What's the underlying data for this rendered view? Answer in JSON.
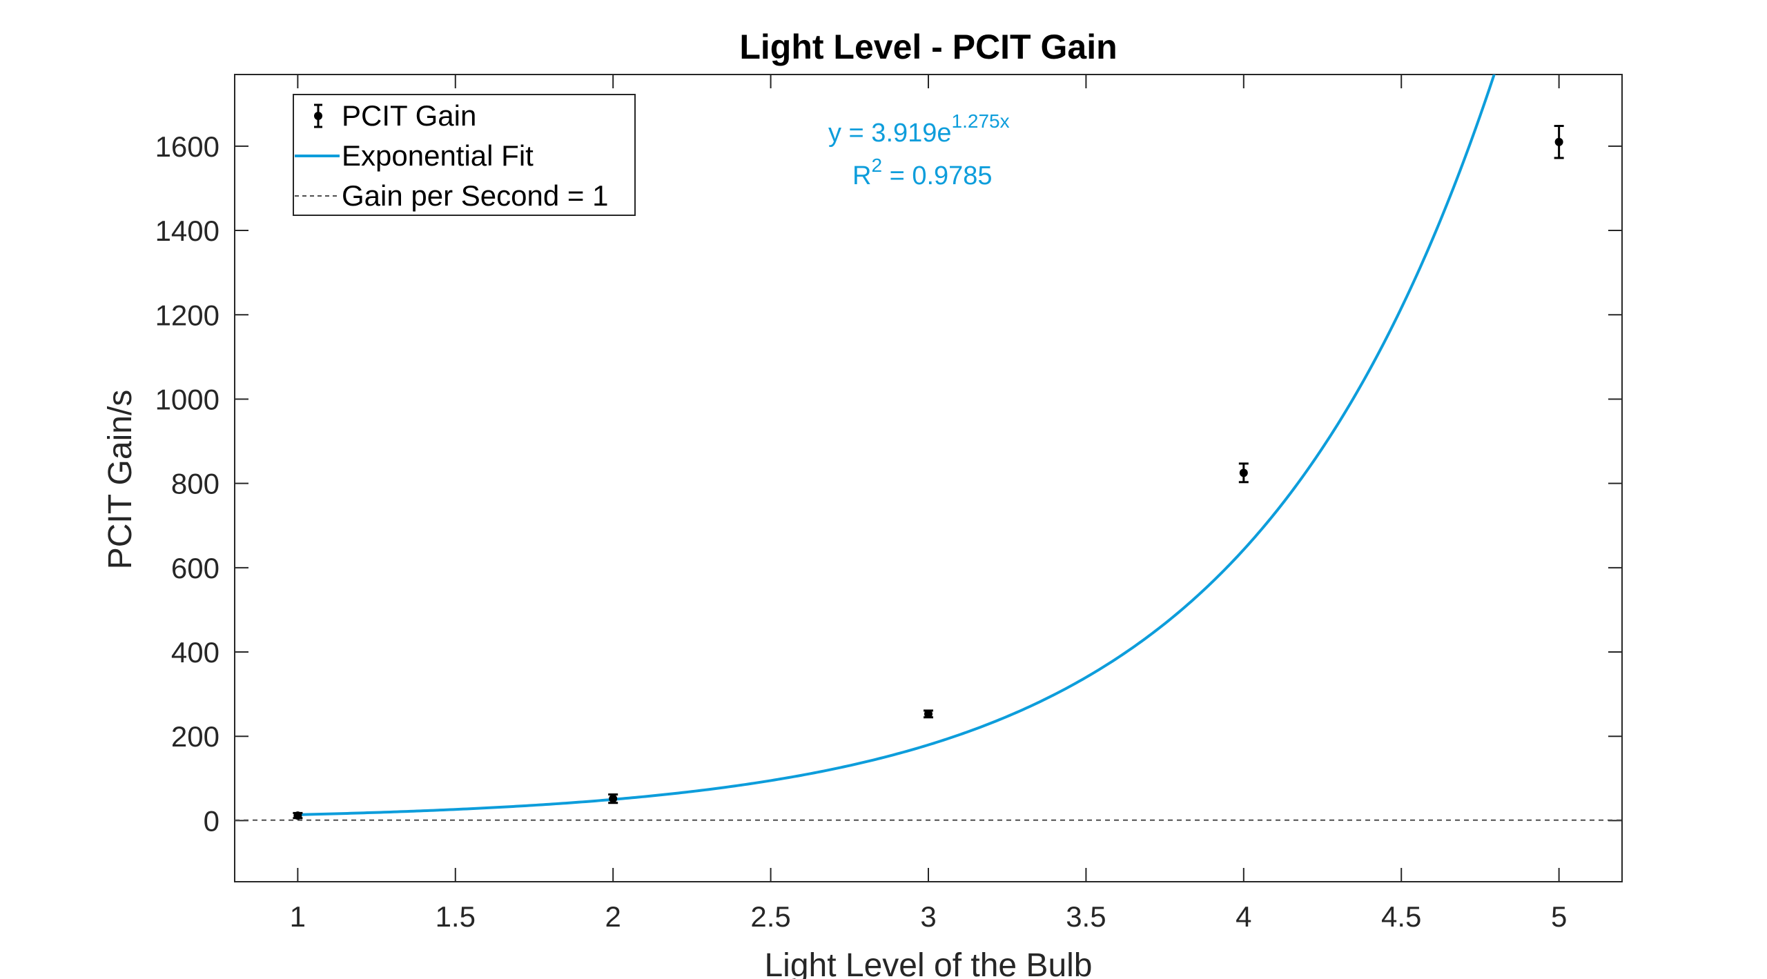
{
  "chart_data": {
    "type": "scatter",
    "title": "Light Level - PCIT Gain",
    "xlabel": "Light Level of the Bulb",
    "ylabel": "PCIT Gain/s",
    "xlim": [
      0.8,
      5.2
    ],
    "ylim": [
      -145,
      1770
    ],
    "xticks": [
      1,
      1.5,
      2,
      2.5,
      3,
      3.5,
      4,
      4.5,
      5
    ],
    "xtick_labels": [
      "1",
      "1.5",
      "2",
      "2.5",
      "3",
      "3.5",
      "4",
      "4.5",
      "5"
    ],
    "yticks": [
      0,
      200,
      400,
      600,
      800,
      1000,
      1200,
      1400,
      1600
    ],
    "ytick_labels": [
      "0",
      "200",
      "400",
      "600",
      "800",
      "1000",
      "1200",
      "1400",
      "1600"
    ],
    "grid": false,
    "legend_position": "top-left",
    "series": [
      {
        "name": "PCIT Gain",
        "kind": "errorbar",
        "color": "#000000",
        "x": [
          1,
          2,
          3,
          4,
          5
        ],
        "y": [
          12,
          52,
          253,
          825,
          1610
        ],
        "err": [
          6,
          10,
          8,
          22,
          38
        ]
      },
      {
        "name": "Exponential Fit",
        "kind": "line",
        "color": "#0d9ddb",
        "model": {
          "form": "y = a*exp(b*x)",
          "a": 3.919,
          "b": 1.275
        }
      },
      {
        "name": "Gain per Second = 1",
        "kind": "hline",
        "color": "#4d4d4d",
        "y": 1
      }
    ],
    "annotation": {
      "color": "#0d9ddb",
      "eq_prefix": "y = 3.919e",
      "eq_exponent": "1.275x",
      "r2_prefix": "R",
      "r2_exponent": "2",
      "r2_value": " = 0.9785"
    }
  }
}
